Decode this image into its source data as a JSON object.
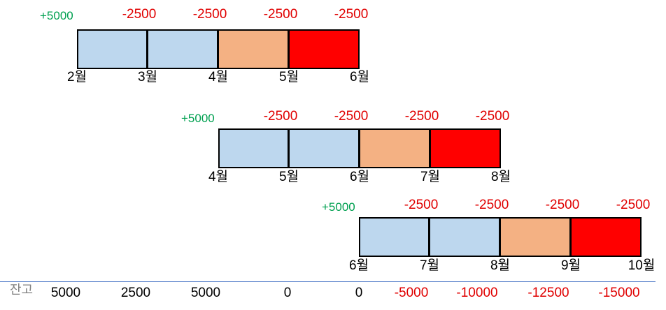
{
  "colors": {
    "blue": "#bdd7ee",
    "orange": "#f4b183",
    "red": "#ff0000",
    "positive": "#00a050",
    "negative": "#e00000"
  },
  "rows": [
    {
      "income": "+5000",
      "payments": [
        "-2500",
        "-2500",
        "-2500",
        "-2500"
      ],
      "months": [
        "2월",
        "3월",
        "4월",
        "5월",
        "6월"
      ],
      "segments": [
        "blue",
        "blue",
        "orange",
        "red"
      ]
    },
    {
      "income": "+5000",
      "payments": [
        "-2500",
        "-2500",
        "-2500",
        "-2500"
      ],
      "months": [
        "4월",
        "5월",
        "6월",
        "7월",
        "8월"
      ],
      "segments": [
        "blue",
        "blue",
        "orange",
        "red"
      ]
    },
    {
      "income": "+5000",
      "payments": [
        "-2500",
        "-2500",
        "-2500",
        "-2500"
      ],
      "months": [
        "6월",
        "7월",
        "8월",
        "9월",
        "10월"
      ],
      "segments": [
        "blue",
        "blue",
        "orange",
        "red"
      ]
    }
  ],
  "balance": {
    "label": "잔고",
    "values": [
      "5000",
      "2500",
      "5000",
      "0",
      "0",
      "-5000",
      "-10000",
      "-12500",
      "-15000"
    ]
  }
}
